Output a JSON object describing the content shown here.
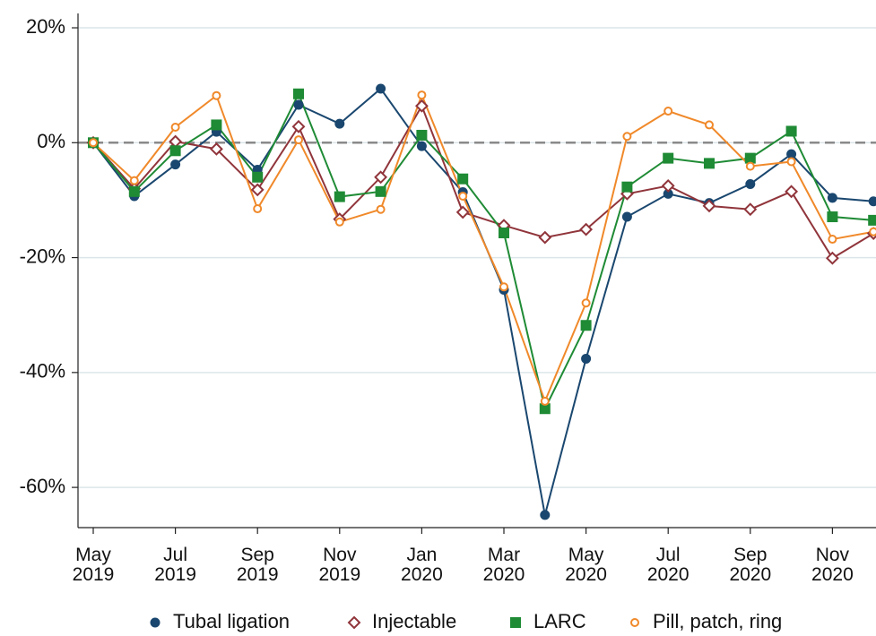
{
  "chart_data": {
    "type": "line",
    "categories": [
      "May\n2019",
      null,
      "Jul\n2019",
      null,
      "Sep\n2019",
      null,
      "Nov\n2019",
      null,
      "Jan\n2020",
      null,
      "Mar\n2020",
      null,
      "May\n2020",
      null,
      "Jul\n2020",
      null,
      "Sep\n2020",
      null,
      "Nov\n2020",
      null
    ],
    "series": [
      {
        "name": "Tubal ligation",
        "color": "#1a476f",
        "marker": "circle",
        "filled": true,
        "values": [
          0,
          -9.3,
          -3.8,
          1.9,
          -4.7,
          6.6,
          3.3,
          9.4,
          -0.6,
          -8.6,
          -25.6,
          -64.8,
          -37.6,
          -12.9,
          -8.9,
          -10.5,
          -7.2,
          -2.0,
          -9.6,
          -10.2
        ]
      },
      {
        "name": "Injectable",
        "color": "#90353b",
        "marker": "diamond",
        "filled": false,
        "values": [
          0,
          -8.0,
          0.2,
          -1.1,
          -8.2,
          2.8,
          -13.3,
          -6.0,
          6.4,
          -12.1,
          -14.4,
          -16.5,
          -15.1,
          -8.9,
          -7.5,
          -11.0,
          -11.6,
          -8.5,
          -20.1,
          -15.8
        ]
      },
      {
        "name": "LARC",
        "color": "#1f8b35",
        "marker": "square",
        "filled": true,
        "values": [
          0,
          -8.5,
          -1.4,
          3.1,
          -6.0,
          8.5,
          -9.4,
          -8.5,
          1.3,
          -6.3,
          -15.7,
          -46.3,
          -31.8,
          -7.7,
          -2.7,
          -3.6,
          -2.7,
          2.0,
          -12.9,
          -13.5
        ]
      },
      {
        "name": "Pill, patch, ring",
        "color": "#f0892a",
        "marker": "circle",
        "filled": false,
        "values": [
          0,
          -6.6,
          2.7,
          8.2,
          -11.5,
          0.5,
          -13.8,
          -11.6,
          8.3,
          -9.3,
          -25.1,
          -45.0,
          -27.9,
          1.1,
          5.5,
          3.1,
          -4.1,
          -3.3,
          -16.8,
          -15.5
        ]
      }
    ],
    "ylim": [
      -67,
      22.5
    ],
    "yticks": [
      {
        "value": -60,
        "label": "-60%"
      },
      {
        "value": -40,
        "label": "-40%"
      },
      {
        "value": -20,
        "label": "-20%"
      },
      {
        "value": 0,
        "label": "0%"
      },
      {
        "value": 20,
        "label": "20%"
      }
    ],
    "hline": 0,
    "grid": true,
    "legend": "bottom"
  }
}
